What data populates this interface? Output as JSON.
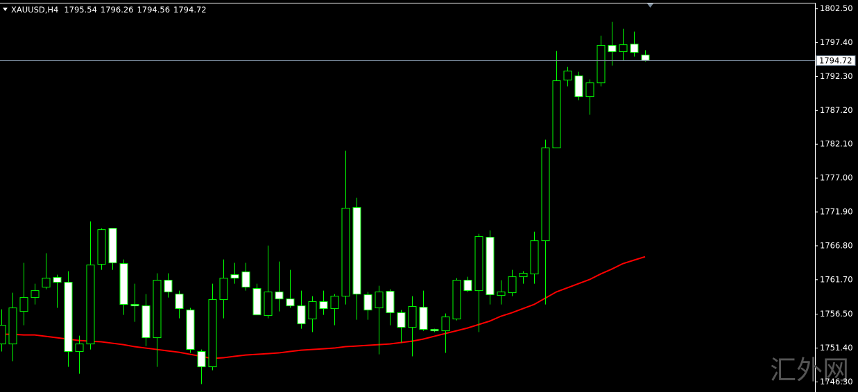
{
  "chart_data": {
    "type": "candlestick",
    "title": "XAUUSD,H4",
    "watermark": "汇外网",
    "open": [
      1752.02,
      1752.02,
      1756.92,
      1759.01,
      1760.58,
      1762.04,
      1761.31,
      1750.88,
      1752.02,
      1764.02,
      1769.44,
      1764.12,
      1757.97,
      1757.76,
      1752.96,
      1761.62,
      1759.53,
      1757.13,
      1750.88,
      1748.58,
      1758.7,
      1762.45,
      1762.87,
      1760.37,
      1756.3,
      1759.85,
      1758.8,
      1757.76,
      1755.78,
      1758.39,
      1757.34,
      1759.22,
      1772.57,
      1759.43,
      1757.45,
      1759.95,
      1756.72,
      1754.53,
      1757.55,
      1754.21,
      1754.0,
      1755.78,
      1761.62,
      1760.05,
      1768.09,
      1759.32,
      1759.74,
      1762.14,
      1762.56,
      1767.56,
      1781.54,
      1791.76,
      1792.39,
      1789.26,
      1791.34,
      1796.98,
      1796.04,
      1797.18,
      1795.54
    ],
    "high": [
      1757.24,
      1759.74,
      1764.23,
      1761.1,
      1765.69,
      1762.45,
      1762.97,
      1753.27,
      1770.48,
      1769.44,
      1769.44,
      1764.75,
      1761.1,
      1759.53,
      1762.66,
      1762.66,
      1760.05,
      1757.45,
      1751.19,
      1761.1,
      1764.75,
      1764.23,
      1764.23,
      1761.1,
      1766.83,
      1764.43,
      1763.18,
      1760.05,
      1759.22,
      1760.05,
      1759.53,
      1781.12,
      1774.03,
      1759.85,
      1760.78,
      1760.26,
      1757.13,
      1759.22,
      1760.05,
      1754.32,
      1756.61,
      1761.93,
      1762.14,
      1768.61,
      1769.13,
      1761.62,
      1763.18,
      1762.97,
      1768.92,
      1782.79,
      1796.14,
      1793.74,
      1793.01,
      1791.86,
      1798.44,
      1800.52,
      1799.48,
      1799.06,
      1796.26
    ],
    "low": [
      1750.88,
      1749.42,
      1754.84,
      1757.97,
      1760.26,
      1757.45,
      1748.58,
      1747.54,
      1751.19,
      1763.18,
      1763.18,
      1756.4,
      1755.36,
      1751.71,
      1748.58,
      1759.01,
      1755.88,
      1750.67,
      1745.97,
      1748.06,
      1755.88,
      1761.1,
      1760.05,
      1756.4,
      1755.88,
      1756.92,
      1757.45,
      1754.32,
      1753.8,
      1756.4,
      1754.84,
      1757.97,
      1755.67,
      1755.67,
      1750.46,
      1754.84,
      1752.23,
      1750.15,
      1754.0,
      1753.8,
      1750.67,
      1755.57,
      1759.85,
      1753.8,
      1757.97,
      1757.97,
      1759.22,
      1761.1,
      1761.1,
      1757.97,
      1781.54,
      1790.82,
      1788.74,
      1786.55,
      1790.82,
      1793.95,
      1794.68,
      1795.31,
      1794.56
    ],
    "close": [
      1754.84,
      1757.45,
      1759.01,
      1760.05,
      1761.93,
      1761.31,
      1750.88,
      1752.02,
      1763.91,
      1769.23,
      1764.23,
      1757.97,
      1757.76,
      1752.96,
      1761.62,
      1759.85,
      1757.34,
      1751.19,
      1748.58,
      1758.7,
      1761.93,
      1761.93,
      1760.58,
      1756.4,
      1759.85,
      1758.8,
      1757.76,
      1755.05,
      1758.39,
      1757.34,
      1759.22,
      1772.47,
      1759.53,
      1757.13,
      1759.85,
      1756.72,
      1754.53,
      1757.66,
      1754.21,
      1754.0,
      1756.09,
      1761.62,
      1760.05,
      1768.19,
      1759.43,
      1759.85,
      1762.14,
      1762.66,
      1767.56,
      1781.54,
      1791.66,
      1793.12,
      1789.26,
      1791.34,
      1796.98,
      1796.04,
      1797.08,
      1795.93,
      1794.72
    ],
    "overlay_line": {
      "color": "#ff0000",
      "values": [
        1753.48,
        1753.48,
        1753.38,
        1753.38,
        1753.17,
        1752.96,
        1752.75,
        1752.54,
        1752.44,
        1752.34,
        1752.13,
        1751.92,
        1751.61,
        1751.4,
        1751.19,
        1750.98,
        1750.77,
        1750.46,
        1750.15,
        1749.83,
        1749.94,
        1750.15,
        1750.35,
        1750.46,
        1750.56,
        1750.67,
        1750.88,
        1751.08,
        1751.19,
        1751.29,
        1751.4,
        1751.61,
        1751.71,
        1751.81,
        1751.92,
        1752.02,
        1752.23,
        1752.44,
        1752.75,
        1753.17,
        1753.59,
        1754.0,
        1754.42,
        1754.94,
        1755.46,
        1756.19,
        1756.72,
        1757.34,
        1757.97,
        1758.91,
        1759.85,
        1760.47,
        1761.1,
        1761.72,
        1762.56,
        1763.29,
        1764.12,
        1764.64,
        1765.16
      ]
    },
    "candle_outline_color": "#00ff00",
    "bull_fill": "#000000",
    "bear_fill": "#ffffff",
    "price_line_color": "#778899",
    "ylim": [
      1745.2,
      1803.3
    ],
    "yticks": [
      {
        "value": 1802.5,
        "label": "1802.50"
      },
      {
        "value": 1797.4,
        "label": "1797.40"
      },
      {
        "value": 1792.3,
        "label": "1792.30"
      },
      {
        "value": 1787.2,
        "label": "1787.20"
      },
      {
        "value": 1782.1,
        "label": "1782.10"
      },
      {
        "value": 1777.0,
        "label": "1777.00"
      },
      {
        "value": 1771.9,
        "label": "1771.90"
      },
      {
        "value": 1766.8,
        "label": "1766.80"
      },
      {
        "value": 1761.7,
        "label": "1761.70"
      },
      {
        "value": 1756.5,
        "label": "1756.50"
      },
      {
        "value": 1751.4,
        "label": "1751.40"
      },
      {
        "value": 1746.3,
        "label": "1746.30"
      }
    ]
  }
}
